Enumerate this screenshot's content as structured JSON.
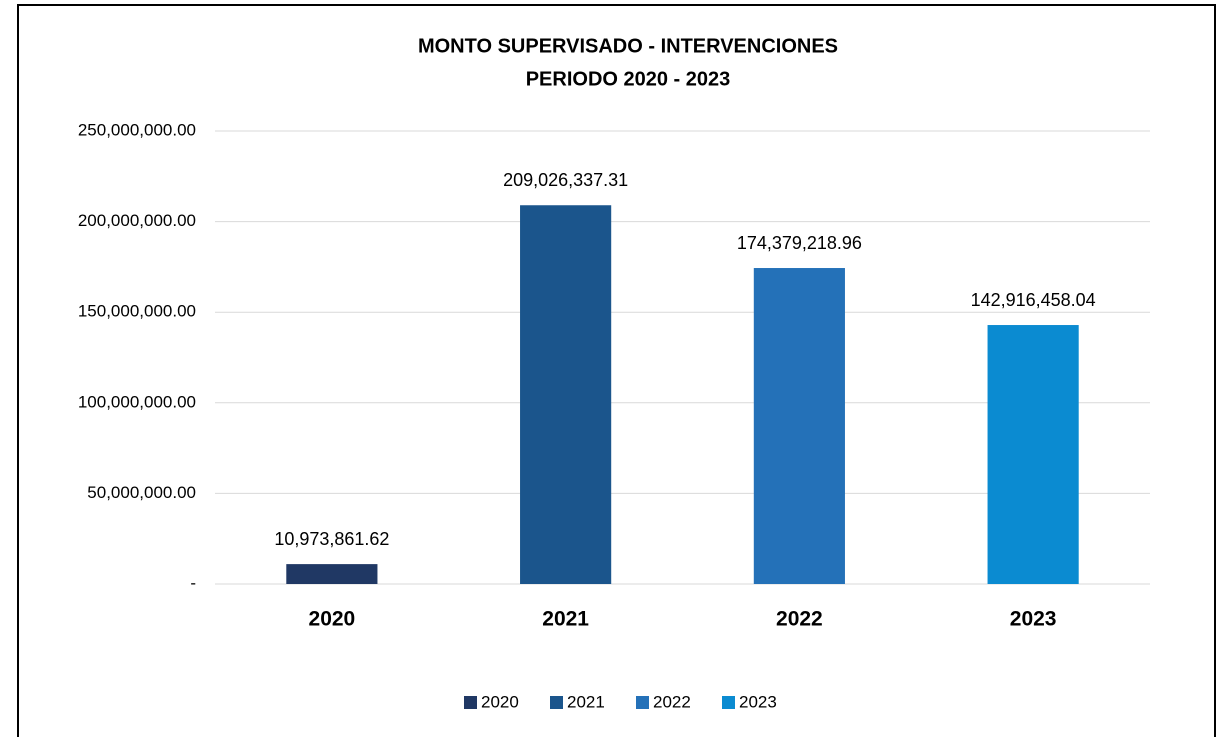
{
  "chart_data": {
    "type": "bar",
    "title": "MONTO SUPERVISADO - INTERVENCIONES",
    "subtitle": "PERIODO 2020 - 2023",
    "categories": [
      "2020",
      "2021",
      "2022",
      "2023"
    ],
    "values": [
      10973861.62,
      209026337.31,
      174379218.96,
      142916458.04
    ],
    "value_labels": [
      "10,973,861.62",
      "209,026,337.31",
      "174,379,218.96",
      "142,916,458.04"
    ],
    "colors": [
      "#203864",
      "#1b558c",
      "#2471b8",
      "#0b8bd1"
    ],
    "ylim": [
      0,
      250000000
    ],
    "yticks": [
      {
        "value": 0,
        "label": "-"
      },
      {
        "value": 50000000,
        "label": "50,000,000.00"
      },
      {
        "value": 100000000,
        "label": "100,000,000.00"
      },
      {
        "value": 150000000,
        "label": "150,000,000.00"
      },
      {
        "value": 200000000,
        "label": "200,000,000.00"
      },
      {
        "value": 250000000,
        "label": "250,000,000.00"
      }
    ],
    "grid": true,
    "legend": "bottom"
  }
}
